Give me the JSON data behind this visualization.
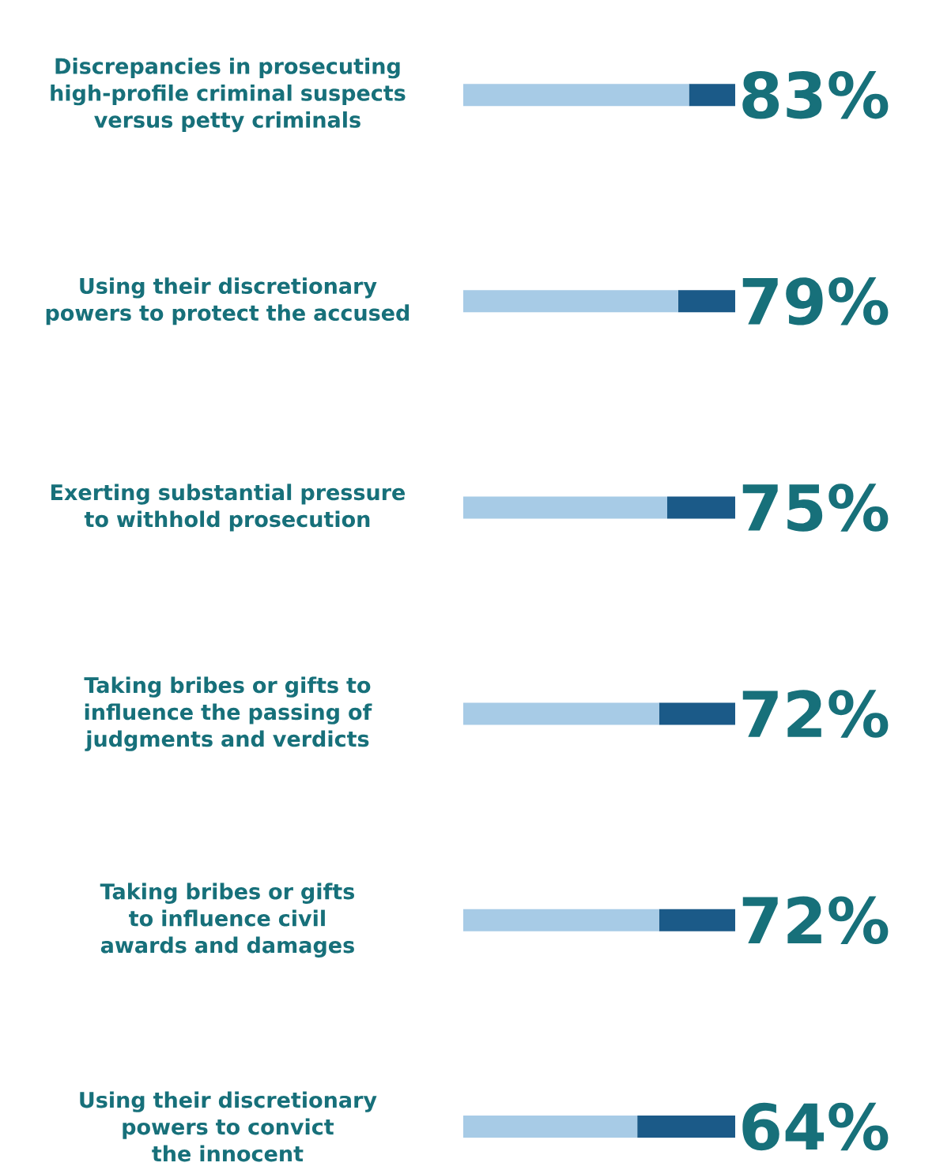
{
  "chart_data": {
    "type": "bar",
    "orientation": "horizontal",
    "stacked": true,
    "tick_labels": "y",
    "xlim": [
      0,
      100
    ],
    "categories": [
      "Discrepancies in prosecuting high-profile criminal suspects versus petty criminals",
      "Using their discretionary powers to protect the accused",
      "Exerting substantial pressure to withhold prosecution",
      "Taking bribes or gifts to influence the passing of judgments and verdicts",
      "Taking bribes or gifts to influence civil awards and damages",
      "Using their discretionary powers to convict the innocent"
    ],
    "series": [
      {
        "color": "#a7cbe6",
        "values": [
          83,
          79,
          75,
          72,
          72,
          64
        ],
        "value_labels": [
          "83%",
          "79%",
          "75%",
          "72%",
          "72%",
          "64%"
        ]
      },
      {
        "color": "#1b5a88",
        "values": [
          17,
          21,
          25,
          28,
          28,
          36
        ]
      }
    ]
  }
}
